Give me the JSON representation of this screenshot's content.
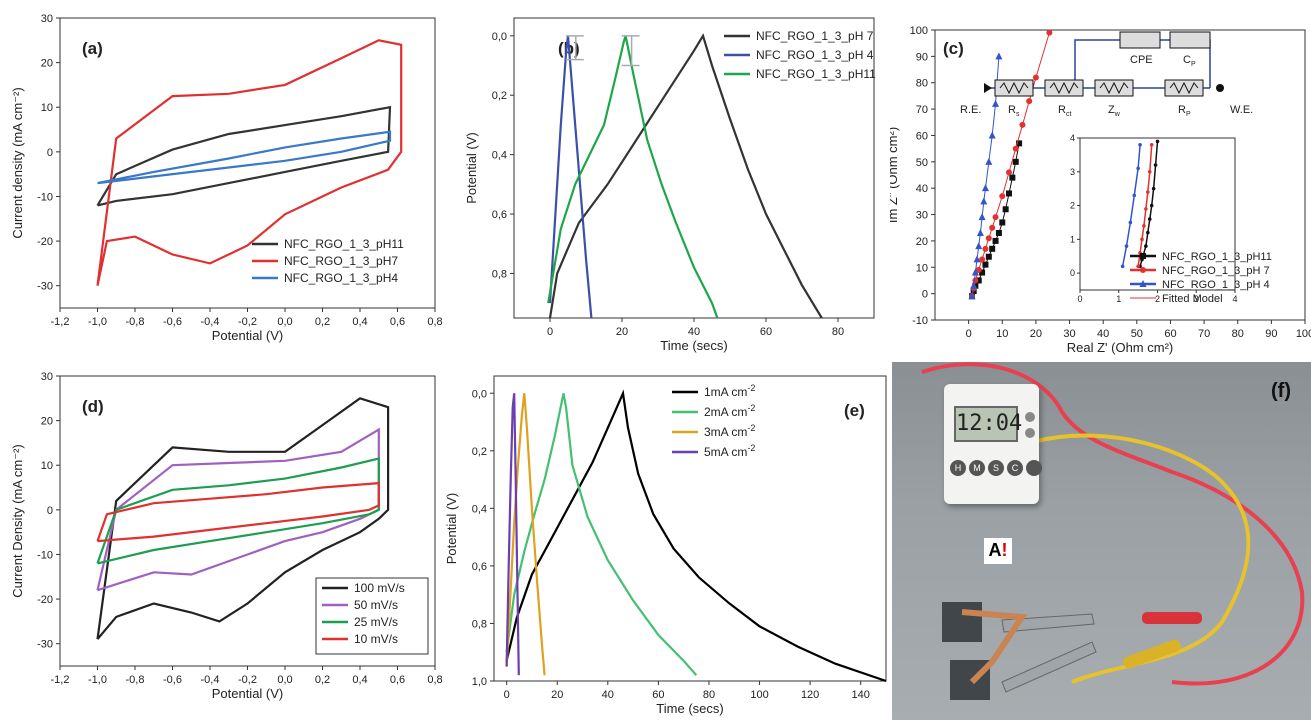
{
  "chart_data": [
    {
      "id": "a",
      "type": "line",
      "panel_label": "(a)",
      "xlabel": "Potential (V)",
      "ylabel": "Current density (mA cm⁻²)",
      "xlim": [
        -1.2,
        0.8
      ],
      "ylim": [
        -35,
        30
      ],
      "xticks": [
        "-1,2",
        "-1,0",
        "-0,8",
        "-0,6",
        "-0,4",
        "-0,2",
        "0,0",
        "0,2",
        "0,4",
        "0,6",
        "0,8"
      ],
      "yticks": [
        "-30",
        "-20",
        "-10",
        "0",
        "10",
        "20",
        "30"
      ],
      "legend": "bottom-right",
      "series": [
        {
          "name": "NFC_RGO_1_3_pH11",
          "color": "#333333",
          "x": [
            -1.0,
            -0.9,
            -0.6,
            -0.3,
            0.0,
            0.3,
            0.55,
            0.56,
            0.3,
            0.0,
            -0.3,
            -0.6,
            -0.9,
            -1.0
          ],
          "y": [
            -12,
            -11,
            -9.5,
            -7,
            -4.5,
            -2,
            0,
            10,
            8,
            6,
            4,
            0.5,
            -5,
            -12
          ]
        },
        {
          "name": "NFC_RGO_1_3_pH7",
          "color": "#e03030",
          "x": [
            -1.0,
            -0.95,
            -0.8,
            -0.6,
            -0.4,
            -0.2,
            0.0,
            0.3,
            0.55,
            0.62,
            0.62,
            0.5,
            0.3,
            0.0,
            -0.3,
            -0.6,
            -0.9,
            -1.0
          ],
          "y": [
            -30,
            -20,
            -19,
            -23,
            -25,
            -21,
            -14,
            -8,
            -4,
            0,
            24,
            25,
            21,
            15,
            13,
            12.5,
            3,
            -30
          ]
        },
        {
          "name": "NFC_RGO_1_3_pH4",
          "color": "#3a78c9",
          "x": [
            -1.0,
            -0.7,
            -0.3,
            0.0,
            0.3,
            0.56,
            0.56,
            0.3,
            0.0,
            -0.3,
            -0.7,
            -1.0
          ],
          "y": [
            -7,
            -5.5,
            -3.5,
            -2,
            0,
            2.5,
            4.5,
            3,
            1,
            -1.5,
            -4.5,
            -7
          ]
        }
      ]
    },
    {
      "id": "b",
      "type": "line",
      "panel_label": "(b)",
      "xlabel": "Time (secs)",
      "ylabel": "Potential (V)",
      "xlim": [
        -10,
        90
      ],
      "ylim": [
        0.95,
        -0.06
      ],
      "xticks": [
        "0",
        "20",
        "40",
        "60",
        "80"
      ],
      "yticks": [
        "0,0",
        "0,2",
        "0,4",
        "0,6",
        "0,8"
      ],
      "legend": "top-right",
      "series": [
        {
          "name": "NFC_RGO_1_3_pH 7",
          "color": "#333333",
          "x": [
            0,
            2,
            8,
            16,
            24,
            32,
            40,
            42.5,
            45,
            50,
            55,
            60,
            65,
            70,
            75.5
          ],
          "y": [
            0.95,
            0.8,
            0.63,
            0.5,
            0.35,
            0.2,
            0.05,
            0,
            0.1,
            0.28,
            0.45,
            0.6,
            0.72,
            0.84,
            0.95
          ]
        },
        {
          "name": "NFC_RGO_1_3_pH 4",
          "color": "#3b50a8",
          "x": [
            0,
            1.5,
            3,
            4.5,
            5,
            6,
            8,
            10,
            11.5
          ],
          "y": [
            0.9,
            0.6,
            0.3,
            0.05,
            0,
            0.15,
            0.45,
            0.75,
            0.95
          ]
        },
        {
          "name": "NFC_RGO_1_3_pH11",
          "color": "#1ea64a",
          "x": [
            -0.5,
            3,
            7,
            11,
            15,
            18,
            20.5,
            21,
            23,
            27,
            31,
            35,
            40,
            45,
            46.5
          ],
          "y": [
            0.9,
            0.65,
            0.5,
            0.4,
            0.3,
            0.15,
            0.02,
            0,
            0.12,
            0.35,
            0.5,
            0.63,
            0.78,
            0.9,
            0.95
          ]
        }
      ]
    },
    {
      "id": "c",
      "type": "scatter",
      "panel_label": "(c)",
      "xlabel": "Real Z' (Ohm cm²)",
      "ylabel": "Im Z\" (Ohm cm²)",
      "xlim": [
        -10,
        100
      ],
      "ylim": [
        -10,
        100
      ],
      "xticks": [
        "0",
        "10",
        "20",
        "30",
        "40",
        "50",
        "60",
        "70",
        "80",
        "90",
        "100"
      ],
      "yticks": [
        "-10",
        "0",
        "10",
        "20",
        "30",
        "40",
        "50",
        "60",
        "70",
        "80",
        "90",
        "100"
      ],
      "inset_xlim": [
        0,
        4
      ],
      "inset_ylim": [
        -0.5,
        4
      ],
      "inset_xticks": [
        "0",
        "1",
        "2",
        "3",
        "4"
      ],
      "inset_yticks": [
        "0",
        "1",
        "2",
        "3",
        "4"
      ],
      "legend": "bottom-right",
      "series": [
        {
          "name": "NFC_RGO_1_3_pH11",
          "color": "#111111",
          "marker": "square",
          "x": [
            1,
            1.5,
            2,
            3,
            4,
            5,
            6,
            7,
            8,
            9,
            10,
            11,
            12,
            13,
            14,
            15
          ],
          "y": [
            -1,
            1,
            3,
            5,
            8,
            11,
            14,
            17,
            20,
            23,
            27,
            32,
            38,
            44,
            50,
            57
          ]
        },
        {
          "name": "NFC_RGO_1_3_pH 7",
          "color": "#e53030",
          "marker": "circle",
          "x": [
            1,
            1.5,
            2,
            3,
            4,
            5,
            6,
            7,
            8,
            10,
            12,
            14,
            16,
            18,
            20,
            24
          ],
          "y": [
            -1,
            2,
            5,
            9,
            13,
            17,
            21,
            25,
            29,
            37,
            46,
            55,
            64,
            73,
            82,
            99
          ]
        },
        {
          "name": "NFC_RGO_1_3_pH 4",
          "color": "#3355cc",
          "marker": "triangle",
          "x": [
            1,
            1.5,
            2,
            2.5,
            3,
            3.5,
            4,
            4.5,
            5,
            6,
            7,
            8,
            9
          ],
          "y": [
            -1,
            3,
            8,
            13,
            18,
            23,
            29,
            35,
            40,
            50,
            60,
            72,
            90
          ]
        }
      ],
      "inset_series": [
        {
          "name": "NFC_RGO_1_3_pH11",
          "color": "#111111",
          "x": [
            1.55,
            1.6,
            1.7,
            1.75,
            1.8,
            1.85,
            1.9,
            1.95,
            2.0
          ],
          "y": [
            0.2,
            0.4,
            0.8,
            1.2,
            1.6,
            2.0,
            2.5,
            3.2,
            3.9
          ]
        },
        {
          "name": "NFC_RGO_1_3_pH 7",
          "color": "#e53030",
          "x": [
            1.5,
            1.55,
            1.6,
            1.65,
            1.7,
            1.75,
            1.8,
            1.85
          ],
          "y": [
            0.2,
            0.6,
            1.0,
            1.4,
            1.9,
            2.4,
            3.0,
            3.8
          ]
        },
        {
          "name": "NFC_RGO_1_3_pH 4",
          "color": "#3355cc",
          "x": [
            1.1,
            1.2,
            1.3,
            1.4,
            1.5,
            1.55
          ],
          "y": [
            0.2,
            0.8,
            1.5,
            2.3,
            3.1,
            3.8
          ]
        }
      ],
      "fitted_model_label": "Fitted Model",
      "circuit": {
        "re": "R.E.",
        "we": "W.E.",
        "cpe": "CPE",
        "cp": "C",
        "cp_sub": "P",
        "rs": "R",
        "rs_sub": "s",
        "rct": "R",
        "rct_sub": "ct",
        "zw": "Z",
        "zw_sub": "w",
        "rp": "R",
        "rp_sub": "P"
      }
    },
    {
      "id": "d",
      "type": "line",
      "panel_label": "(d)",
      "xlabel": "Potential (V)",
      "ylabel": "Current Density (mA cm⁻²)",
      "xlim": [
        -1.2,
        0.8
      ],
      "ylim": [
        -35,
        30
      ],
      "xticks": [
        "-1,2",
        "-1,0",
        "-0,8",
        "-0,6",
        "-0,4",
        "-0,2",
        "0,0",
        "0,2",
        "0,4",
        "0,6",
        "0,8"
      ],
      "yticks": [
        "-30",
        "-20",
        "-10",
        "0",
        "10",
        "20",
        "30"
      ],
      "legend": "bottom-right",
      "series": [
        {
          "name": "100 mV/s",
          "color": "#222222",
          "x": [
            -1.0,
            -0.9,
            -0.7,
            -0.5,
            -0.35,
            -0.2,
            0.0,
            0.2,
            0.4,
            0.5,
            0.55,
            0.55,
            0.4,
            0.2,
            0.0,
            -0.3,
            -0.6,
            -0.9,
            -1.0
          ],
          "y": [
            -29,
            -24,
            -21,
            -23,
            -25,
            -21,
            -14,
            -9,
            -5,
            -2,
            0,
            23,
            25,
            19,
            13,
            13,
            14,
            2,
            -29
          ]
        },
        {
          "name": "50 mV/s",
          "color": "#a060c0",
          "x": [
            -1.0,
            -0.7,
            -0.5,
            -0.2,
            0.0,
            0.2,
            0.4,
            0.5,
            0.5,
            0.3,
            0.0,
            -0.3,
            -0.6,
            -0.9,
            -1.0
          ],
          "y": [
            -18,
            -14,
            -14.5,
            -10,
            -7,
            -5,
            -2,
            0,
            18,
            13,
            11,
            10.5,
            10,
            0,
            -18
          ]
        },
        {
          "name": "25 mV/s",
          "color": "#1e9e50",
          "x": [
            -1.0,
            -0.7,
            -0.4,
            -0.1,
            0.2,
            0.45,
            0.5,
            0.5,
            0.3,
            0.0,
            -0.3,
            -0.6,
            -0.9,
            -1.0
          ],
          "y": [
            -12,
            -9,
            -7,
            -5,
            -3,
            -1,
            0,
            11.5,
            9.5,
            7,
            5.5,
            4.5,
            0,
            -12
          ]
        },
        {
          "name": "10 mV/s",
          "color": "#e03030",
          "x": [
            -1.0,
            -0.7,
            -0.4,
            -0.1,
            0.2,
            0.45,
            0.5,
            0.5,
            0.2,
            -0.1,
            -0.4,
            -0.7,
            -0.95,
            -1.0
          ],
          "y": [
            -7,
            -6,
            -4.5,
            -3,
            -1.5,
            0,
            1,
            6,
            5,
            3.5,
            2.5,
            1.5,
            -1,
            -7
          ]
        }
      ]
    },
    {
      "id": "e",
      "type": "line",
      "panel_label": "(e)",
      "xlabel": "Time (secs)",
      "ylabel": "Potential (V)",
      "xlim": [
        -5,
        150
      ],
      "ylim": [
        1.0,
        -0.06
      ],
      "xticks": [
        "0",
        "20",
        "40",
        "60",
        "80",
        "100",
        "120",
        "140"
      ],
      "yticks": [
        "0,0",
        "0,2",
        "0,4",
        "0,6",
        "0,8",
        "1,0"
      ],
      "legend": "top-right",
      "series": [
        {
          "name": "1mA cm",
          "sup": "-2",
          "color": "#000000",
          "x": [
            0,
            4,
            10,
            18,
            26,
            34,
            42,
            46,
            48,
            52,
            58,
            66,
            76,
            88,
            100,
            115,
            130,
            150
          ],
          "y": [
            0.93,
            0.78,
            0.63,
            0.5,
            0.37,
            0.24,
            0.08,
            0,
            0.12,
            0.28,
            0.42,
            0.54,
            0.64,
            0.73,
            0.81,
            0.88,
            0.94,
            1.0
          ]
        },
        {
          "name": "2mA cm",
          "sup": "-2",
          "color": "#44c070",
          "x": [
            0,
            3,
            7,
            11,
            15,
            19,
            22.5,
            23.5,
            26,
            32,
            40,
            50,
            60,
            70,
            75
          ],
          "y": [
            0.9,
            0.7,
            0.55,
            0.42,
            0.3,
            0.15,
            0,
            0.05,
            0.25,
            0.43,
            0.58,
            0.72,
            0.84,
            0.93,
            0.98
          ]
        },
        {
          "name": "3mA cm",
          "sup": "-2",
          "color": "#e0a020",
          "x": [
            0,
            1.5,
            3,
            4.5,
            6,
            7,
            8,
            10,
            12,
            14,
            15
          ],
          "y": [
            0.95,
            0.7,
            0.45,
            0.25,
            0.08,
            0,
            0.12,
            0.4,
            0.65,
            0.88,
            0.98
          ]
        },
        {
          "name": "5mA cm",
          "sup": "-2",
          "color": "#6a3fb0",
          "x": [
            0,
            0.8,
            1.6,
            2.4,
            3,
            3.6,
            4.2,
            4.8
          ],
          "y": [
            0.95,
            0.6,
            0.3,
            0.05,
            0,
            0.3,
            0.65,
            0.98
          ]
        }
      ]
    }
  ],
  "photo": {
    "panel_label": "(f)",
    "timer_display": "12:04",
    "timer_buttons": [
      "H",
      "M",
      "S",
      "C",
      ""
    ],
    "logo_text": "A",
    "logo_mark": "!"
  }
}
